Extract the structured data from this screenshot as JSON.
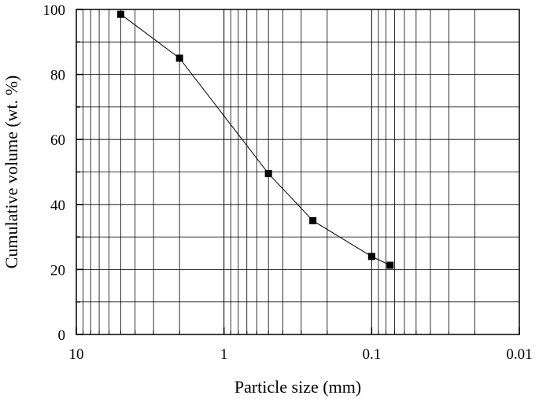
{
  "chart_data": {
    "type": "line",
    "title": "",
    "xlabel": "Particle size (mm)",
    "ylabel": "Cumulative volume (wt. %)",
    "x_scale": "log",
    "x_reversed": true,
    "xlim": [
      10,
      0.01
    ],
    "ylim": [
      0,
      100
    ],
    "x_ticks": [
      "10",
      "1",
      "0.1",
      "0.01"
    ],
    "y_ticks": [
      "0",
      "20",
      "40",
      "60",
      "80",
      "100"
    ],
    "grid": true,
    "series": [
      {
        "x": [
          5,
          2,
          0.5,
          0.25,
          0.1,
          0.075
        ],
        "y": [
          98.5,
          85,
          49.5,
          35,
          24,
          21.3
        ],
        "marker": "square",
        "color": "#000000"
      }
    ]
  }
}
